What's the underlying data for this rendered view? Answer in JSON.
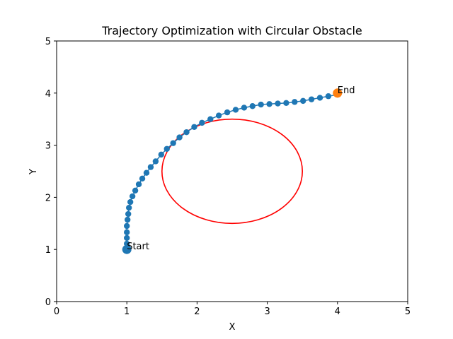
{
  "chart_data": {
    "type": "scatter",
    "title": "Trajectory Optimization with Circular Obstacle",
    "xlabel": "X",
    "ylabel": "Y",
    "xlim": [
      0,
      5
    ],
    "ylim": [
      0,
      5
    ],
    "xticks": [
      "0",
      "1",
      "2",
      "3",
      "4",
      "5"
    ],
    "yticks": [
      "0",
      "1",
      "2",
      "3",
      "4",
      "5"
    ],
    "grid": false,
    "series": [
      {
        "color": "#1f77b4",
        "x": [
          1.0,
          1.0,
          1.0,
          1.0,
          1.0,
          1.01,
          1.02,
          1.03,
          1.05,
          1.08,
          1.12,
          1.17,
          1.22,
          1.28,
          1.34,
          1.41,
          1.49,
          1.57,
          1.66,
          1.75,
          1.85,
          1.96,
          2.07,
          2.19,
          2.31,
          2.43,
          2.55,
          2.67,
          2.79,
          2.91,
          3.03,
          3.15,
          3.27,
          3.39,
          3.51,
          3.63,
          3.75,
          3.87,
          4.0
        ],
        "y": [
          1.0,
          1.11,
          1.22,
          1.33,
          1.45,
          1.57,
          1.68,
          1.8,
          1.91,
          2.02,
          2.13,
          2.25,
          2.36,
          2.47,
          2.58,
          2.69,
          2.82,
          2.93,
          3.04,
          3.15,
          3.25,
          3.35,
          3.43,
          3.5,
          3.57,
          3.63,
          3.68,
          3.72,
          3.75,
          3.78,
          3.79,
          3.8,
          3.81,
          3.83,
          3.85,
          3.88,
          3.91,
          3.94,
          3.97
        ]
      },
      {
        "shape": "circle",
        "color": "#ff0000",
        "center": [
          2.5,
          2.5
        ],
        "radius": 1.0
      }
    ],
    "markers": [
      {
        "label": "Start",
        "x": 1.0,
        "y": 1.0,
        "color": "#1f77b4"
      },
      {
        "label": "End",
        "x": 4.0,
        "y": 4.0,
        "color": "#ff7f0e"
      }
    ]
  }
}
